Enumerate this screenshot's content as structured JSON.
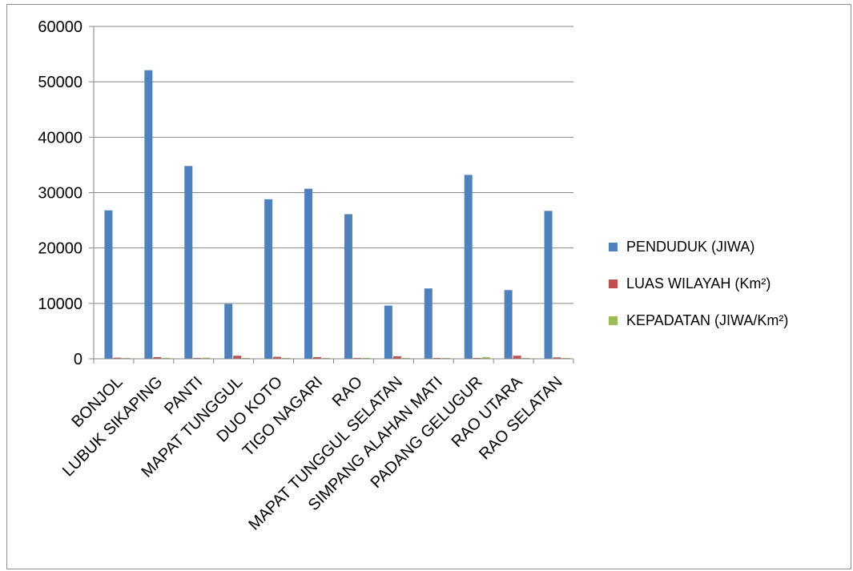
{
  "chart_data": {
    "type": "bar",
    "title": "",
    "xlabel": "",
    "ylabel": "",
    "ylim": [
      0,
      60000
    ],
    "y_ticks": [
      0,
      10000,
      20000,
      30000,
      40000,
      50000,
      60000
    ],
    "grid": true,
    "legend_position": "right",
    "categories": [
      "BONJOL",
      "LUBUK SIKAPING",
      "PANTI",
      "MAPAT TUNGGUL",
      "DUO KOTO",
      "TIGO NAGARI",
      "RAO",
      "MAPAT TUNGGUL SELATAN",
      "SIMPANG ALAHAN MATI",
      "PADANG GELUGUR",
      "RAO UTARA",
      "RAO SELATAN"
    ],
    "series": [
      {
        "name": "PENDUDUK (JIWA)",
        "color": "#4f81bd",
        "values": [
          26800,
          52100,
          34800,
          9900,
          28800,
          30700,
          26100,
          9600,
          12700,
          33200,
          12400,
          26700
        ]
      },
      {
        "name": "LUAS WILAYAH (Km²)",
        "color": "#c0504d",
        "values": [
          200,
          300,
          150,
          550,
          350,
          300,
          150,
          450,
          100,
          100,
          550,
          250
        ]
      },
      {
        "name": "KEPADATAN (JIWA/Km²)",
        "color": "#9bbb59",
        "values": [
          120,
          170,
          200,
          20,
          80,
          100,
          170,
          20,
          110,
          300,
          20,
          100
        ]
      }
    ]
  }
}
